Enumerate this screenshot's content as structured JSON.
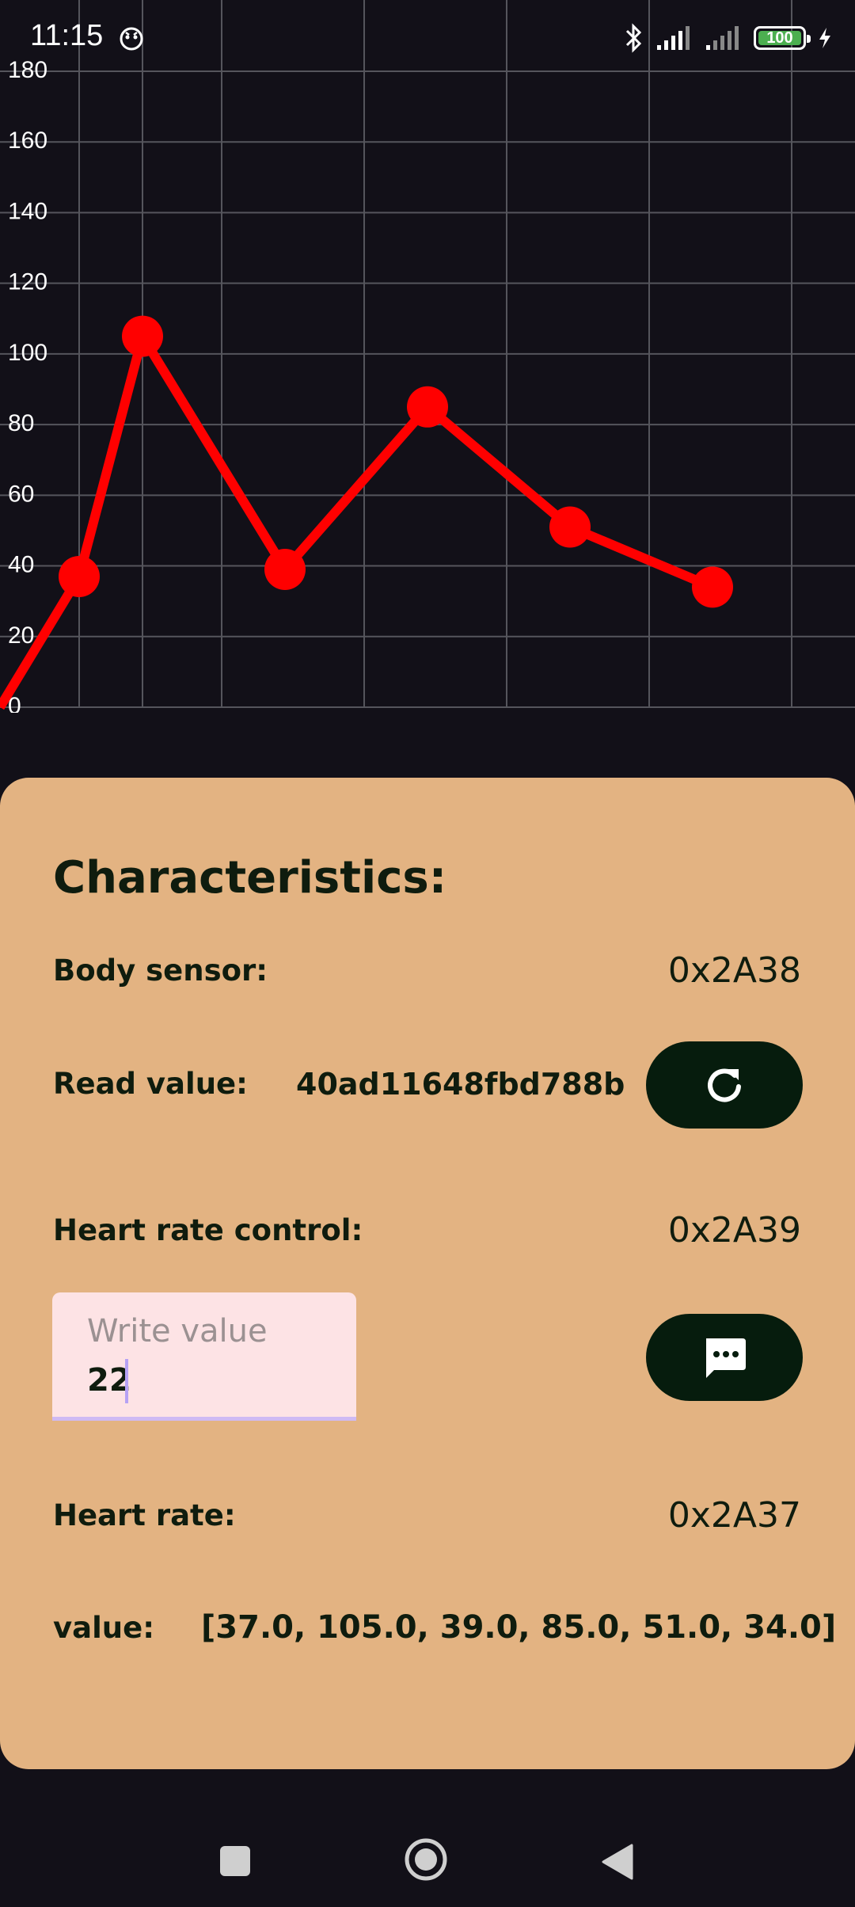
{
  "status_bar": {
    "time": "11:15",
    "battery": "100",
    "battery_color": "#4caf50"
  },
  "chart_data": {
    "type": "line",
    "x": [
      0,
      1,
      2,
      3,
      4,
      5,
      6
    ],
    "series": [
      {
        "values": [
          0,
          37,
          105,
          39,
          85,
          51,
          34
        ],
        "color": "#ff0000"
      }
    ],
    "y_tick_labels": [
      "0",
      "20",
      "40",
      "60",
      "80",
      "100",
      "120",
      "140",
      "160",
      "180"
    ],
    "ylim": [
      0,
      180
    ],
    "grid": true,
    "title": "",
    "xlabel": "",
    "ylabel": ""
  },
  "characteristics": {
    "title": "Characteristics:",
    "body_sensor": {
      "label": "Body sensor:",
      "uuid": "0x2A38"
    },
    "read": {
      "label": "Read value:",
      "value": "40ad11648fbd788b",
      "button_icon": "refresh-icon"
    },
    "heart_rate_control": {
      "label": "Heart rate control:",
      "uuid": "0x2A39"
    },
    "write": {
      "placeholder": "Write value",
      "value": "22",
      "button_icon": "message-icon"
    },
    "heart_rate": {
      "label": "Heart rate:",
      "uuid": "0x2A37"
    },
    "value": {
      "label": "value:",
      "text": "[37.0, 105.0, 39.0, 85.0, 51.0, 34.0]"
    }
  },
  "colors": {
    "card_bg": "#e3b382",
    "dark_button": "#061c0d",
    "line": "#ff0000",
    "background": "#121018"
  },
  "nav_bar": {
    "recents_icon": "square-icon",
    "home_icon": "circle-home-icon",
    "back_icon": "triangle-back-icon"
  }
}
